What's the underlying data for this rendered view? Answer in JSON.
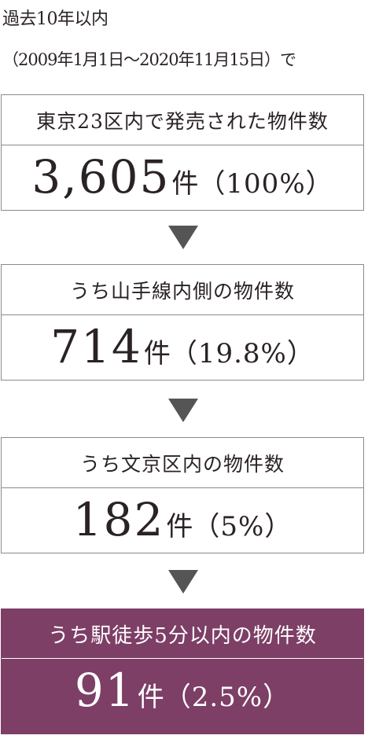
{
  "intro": {
    "line1": "過去10年以内",
    "line2": "（2009年1月1日～2020年11月15日）で"
  },
  "colors": {
    "highlight": "#7d3f66",
    "arrow": "#555555",
    "border": "#8a8a8a"
  },
  "funnel": [
    {
      "label": "東京23区内で発売された物件数",
      "count": "3,605",
      "unit": "件",
      "percent": "（100%）"
    },
    {
      "label": "うち山手線内側の物件数",
      "count": "714",
      "unit": "件",
      "percent": "（19.8%）"
    },
    {
      "label": "うち文京区内の物件数",
      "count": "182",
      "unit": "件",
      "percent": "（5%）"
    },
    {
      "label": "うち駅徒歩5分以内の物件数",
      "count": "91",
      "unit": "件",
      "percent": "（2.5%）"
    }
  ],
  "arrow_icon": "down-triangle-icon"
}
